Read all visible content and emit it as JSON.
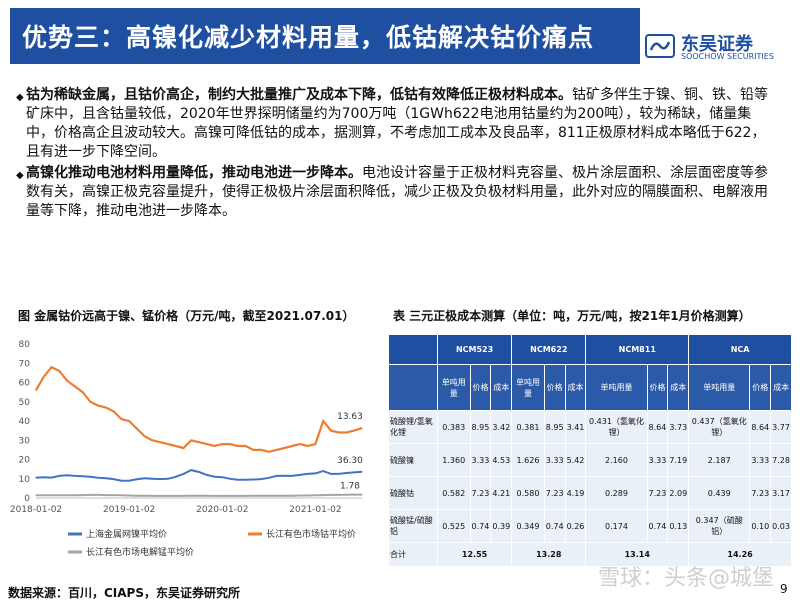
{
  "title": "优势三：高镍化减少材料用量，低钴解决钴价痛点",
  "logo": {
    "name": "东吴证券",
    "sub": "SOOCHOW SECURITIES"
  },
  "bullets": [
    {
      "bold": "钴为稀缺金属，且钴价高企，制约大批量推广及成本下降，低钴有效降低正极材料成本。",
      "text": "钴矿多伴生于镍、铜、铁、铅等矿床中，且含钴量较低，2020年世界探明储量约为700万吨（1GWh622电池用钴量约为200吨），较为稀缺，储量集中，价格高企且波动较大。高镍可降低钴的成本，据测算，不考虑加工成本及良品率，811正极原材料成本略低于622，且有进一步下降空间。"
    },
    {
      "bold": "高镍化推动电池材料用量降低，推动电池进一步降本。",
      "text": "电池设计容量于正极材料克容量、极片涂层面积、涂层面密度等参数有关，高镍正极克容量提升，使得正极极片涂层面积降低，减少正极及负极材料用量，此外对应的隔膜面积、电解液用量等下降，推动电池进一步降本。"
    }
  ],
  "fig_caption": "图  金属钴价远高于镍、锰价格（万元/吨，截至2021.07.01）",
  "table_caption": "表  三元正极成本测算（单位：吨，万元/吨，按21年1月价格测算）",
  "chart_data": {
    "type": "line",
    "ylim": [
      0,
      80
    ],
    "yticks": [
      0,
      10,
      20,
      30,
      40,
      50,
      60,
      70,
      80
    ],
    "xticks": [
      "2018-01-02",
      "2019-01-02",
      "2020-01-02",
      "2021-01-02"
    ],
    "x": [
      "2018-01",
      "2018-02",
      "2018-03",
      "2018-04",
      "2018-05",
      "2018-06",
      "2018-07",
      "2018-08",
      "2018-09",
      "2018-10",
      "2018-11",
      "2018-12",
      "2019-01",
      "2019-02",
      "2019-03",
      "2019-04",
      "2019-05",
      "2019-06",
      "2019-07",
      "2019-08",
      "2019-09",
      "2019-10",
      "2019-11",
      "2019-12",
      "2020-01",
      "2020-02",
      "2020-03",
      "2020-04",
      "2020-05",
      "2020-06",
      "2020-07",
      "2020-08",
      "2020-09",
      "2020-10",
      "2020-11",
      "2020-12",
      "2021-01",
      "2021-02",
      "2021-03",
      "2021-04",
      "2021-05",
      "2021-06",
      "2021-07"
    ],
    "series": [
      {
        "name": "上海金属网镍平均价",
        "color": "#4472c4",
        "values": [
          10.5,
          10.8,
          10.6,
          11.5,
          11.8,
          11.5,
          11.3,
          11.0,
          10.5,
          10.3,
          9.8,
          9.0,
          9.0,
          9.7,
          10.3,
          10.0,
          9.8,
          10.0,
          11.0,
          12.5,
          14.5,
          13.5,
          12.0,
          11.0,
          10.8,
          10.0,
          9.5,
          9.5,
          9.6,
          9.8,
          10.5,
          11.5,
          11.6,
          11.5,
          12.0,
          12.5,
          12.8,
          14.0,
          12.5,
          12.5,
          13.0,
          13.3,
          13.63
        ]
      },
      {
        "name": "长江有色市场钴平均价",
        "color": "#ed7d31",
        "values": [
          56,
          63,
          68,
          66,
          61,
          58,
          55,
          50,
          48,
          47,
          45,
          41,
          40,
          36,
          32,
          30,
          29,
          28,
          27,
          26,
          30,
          29,
          28,
          27,
          28,
          28,
          27,
          27,
          25,
          25,
          24,
          25,
          26,
          27,
          28,
          27,
          28,
          40,
          35,
          34,
          34,
          35,
          36.3
        ]
      },
      {
        "name": "长江有色市场电解锰平均价",
        "color": "#a5a5a5",
        "values": [
          1.4,
          1.4,
          1.4,
          1.4,
          1.4,
          1.4,
          1.5,
          1.6,
          1.6,
          1.5,
          1.5,
          1.4,
          1.3,
          1.2,
          1.2,
          1.1,
          1.1,
          1.1,
          1.1,
          1.1,
          1.2,
          1.2,
          1.2,
          1.1,
          1.1,
          1.1,
          1.1,
          1.1,
          1.2,
          1.2,
          1.2,
          1.2,
          1.2,
          1.2,
          1.3,
          1.3,
          1.4,
          1.5,
          1.6,
          1.6,
          1.7,
          1.75,
          1.78
        ]
      }
    ],
    "end_labels": [
      "36.30",
      "13.63",
      "1.78"
    ]
  },
  "table": {
    "groups": [
      "NCM523",
      "NCM622",
      "NCM811",
      "NCA"
    ],
    "subheaders": [
      "单吨用量",
      "价格",
      "成本"
    ],
    "rows": [
      {
        "label": "硫酸锂/氢氧化锂",
        "cells": [
          "0.383",
          "8.95",
          "3.42",
          "0.381",
          "8.95",
          "3.41",
          "0.431（氢氧化锂）",
          "8.64",
          "3.73",
          "0.437（氢氧化锂）",
          "8.64",
          "3.77"
        ]
      },
      {
        "label": "硫酸镍",
        "cells": [
          "1.360",
          "3.33",
          "4.53",
          "1.626",
          "3.33",
          "5.42",
          "2.160",
          "3.33",
          "7.19",
          "2.187",
          "3.33",
          "7.28"
        ]
      },
      {
        "label": "硫酸钴",
        "cells": [
          "0.582",
          "7.23",
          "4.21",
          "0.580",
          "7.23",
          "4.19",
          "0.289",
          "7.23",
          "2.09",
          "0.439",
          "7.23",
          "3.17"
        ]
      },
      {
        "label": "硫酸锰/硫酸铝",
        "cells": [
          "0.525",
          "0.74",
          "0.39",
          "0.349",
          "0.74",
          "0.26",
          "0.174",
          "0.74",
          "0.13",
          "0.347（硫酸铝）",
          "0.10",
          "0.03"
        ]
      }
    ],
    "total_label": "合计",
    "totals": [
      "12.55",
      "13.28",
      "13.14",
      "14.26"
    ]
  },
  "source": "数据来源：百川，CIAPS，东吴证券研究所",
  "page_number": "9",
  "watermark": "雪球：头条@城堡"
}
